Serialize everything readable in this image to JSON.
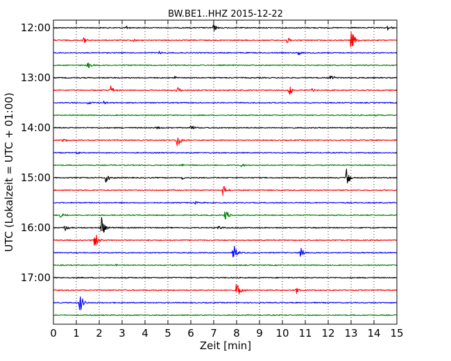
{
  "chart_data": {
    "type": "line",
    "title": "BW.BE1..HHZ 2015-12-22",
    "xlabel": "Zeit  [min]",
    "ylabel": "UTC (Lokalzeit = UTC + 01:00)",
    "xlim": [
      0,
      15
    ],
    "x_ticks": [
      0,
      1,
      2,
      3,
      4,
      5,
      6,
      7,
      8,
      9,
      10,
      11,
      12,
      13,
      14,
      15
    ],
    "y_tick_labels": [
      "12:00",
      "13:00",
      "14:00",
      "15:00",
      "16:00",
      "17:00"
    ],
    "grid": "vertical dotted",
    "colors": [
      "#000000",
      "#ff0000",
      "#0000ff",
      "#008000"
    ],
    "series": [
      {
        "start": "12:00",
        "color": "#000000",
        "events": [
          {
            "t": 7.0,
            "amp": 0.35
          },
          {
            "t": 14.6,
            "amp": 0.25
          },
          {
            "t": 3.2,
            "amp": 0.15
          }
        ]
      },
      {
        "start": "12:15",
        "color": "#ff0000",
        "events": [
          {
            "t": 13.0,
            "amp": 1.0
          },
          {
            "t": 10.2,
            "amp": 0.3
          },
          {
            "t": 1.3,
            "amp": 0.3
          },
          {
            "t": 3.5,
            "amp": 0.15
          }
        ]
      },
      {
        "start": "12:30",
        "color": "#0000ff",
        "events": [
          {
            "t": 10.7,
            "amp": 0.25
          },
          {
            "t": 4.6,
            "amp": 0.15
          }
        ]
      },
      {
        "start": "12:45",
        "color": "#008000",
        "events": [
          {
            "t": 1.5,
            "amp": 0.3
          }
        ]
      },
      {
        "start": "13:00",
        "color": "#000000",
        "events": [
          {
            "t": 12.1,
            "amp": 0.3
          },
          {
            "t": 5.3,
            "amp": 0.12
          }
        ]
      },
      {
        "start": "13:15",
        "color": "#ff0000",
        "events": [
          {
            "t": 2.5,
            "amp": 0.45
          },
          {
            "t": 5.4,
            "amp": 0.4
          },
          {
            "t": 10.3,
            "amp": 0.45
          },
          {
            "t": 11.3,
            "amp": 0.2
          }
        ]
      },
      {
        "start": "13:30",
        "color": "#0000ff",
        "events": [
          {
            "t": 2.2,
            "amp": 0.2
          },
          {
            "t": 1.5,
            "amp": 0.15
          }
        ]
      },
      {
        "start": "13:45",
        "color": "#008000",
        "events": [
          {
            "t": 14.0,
            "amp": 0.12
          }
        ]
      },
      {
        "start": "14:00",
        "color": "#000000",
        "events": [
          {
            "t": 6.0,
            "amp": 0.35
          },
          {
            "t": 4.5,
            "amp": 0.15
          }
        ]
      },
      {
        "start": "14:15",
        "color": "#ff0000",
        "events": [
          {
            "t": 5.4,
            "amp": 0.75
          },
          {
            "t": 0.4,
            "amp": 0.2
          }
        ]
      },
      {
        "start": "14:30",
        "color": "#0000ff",
        "events": [
          {
            "t": 1.0,
            "amp": 0.1
          }
        ]
      },
      {
        "start": "14:45",
        "color": "#008000",
        "events": [
          {
            "t": 8.2,
            "amp": 0.2
          },
          {
            "t": 5.6,
            "amp": 0.1
          }
        ]
      },
      {
        "start": "15:00",
        "color": "#000000",
        "events": [
          {
            "t": 2.3,
            "amp": 0.65
          },
          {
            "t": 12.8,
            "amp": 0.9
          },
          {
            "t": 5.6,
            "amp": 0.2
          }
        ]
      },
      {
        "start": "15:15",
        "color": "#ff0000",
        "events": [
          {
            "t": 7.4,
            "amp": 0.55
          }
        ]
      },
      {
        "start": "15:30",
        "color": "#0000ff",
        "events": [
          {
            "t": 6.2,
            "amp": 0.15
          }
        ]
      },
      {
        "start": "15:45",
        "color": "#008000",
        "events": [
          {
            "t": 7.5,
            "amp": 0.65
          },
          {
            "t": 0.3,
            "amp": 0.25
          }
        ]
      },
      {
        "start": "16:00",
        "color": "#000000",
        "events": [
          {
            "t": 2.1,
            "amp": 1.0
          },
          {
            "t": 0.5,
            "amp": 0.3
          },
          {
            "t": 7.2,
            "amp": 0.2
          }
        ]
      },
      {
        "start": "16:15",
        "color": "#ff0000",
        "events": [
          {
            "t": 1.8,
            "amp": 0.95
          }
        ]
      },
      {
        "start": "16:30",
        "color": "#0000ff",
        "events": [
          {
            "t": 7.85,
            "amp": 0.85
          },
          {
            "t": 10.8,
            "amp": 0.55
          }
        ]
      },
      {
        "start": "16:45",
        "color": "#008000",
        "events": [
          {
            "t": 2.7,
            "amp": 0.1
          }
        ]
      },
      {
        "start": "17:00",
        "color": "#000000",
        "events": []
      },
      {
        "start": "17:15",
        "color": "#ff0000",
        "events": [
          {
            "t": 8.0,
            "amp": 0.9
          },
          {
            "t": 10.6,
            "amp": 0.3
          }
        ]
      },
      {
        "start": "17:30",
        "color": "#0000ff",
        "events": [
          {
            "t": 1.15,
            "amp": 0.95
          }
        ]
      },
      {
        "start": "17:45",
        "color": "#008000",
        "events": []
      }
    ]
  }
}
